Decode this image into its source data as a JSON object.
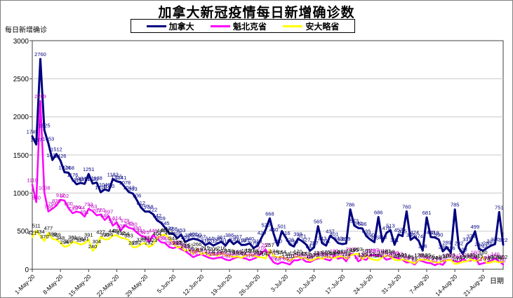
{
  "title": "加拿大新冠疫情每日新增确诊数",
  "legend": {
    "items": [
      {
        "label": "加拿大",
        "color": "#000080"
      },
      {
        "label": "魁北克省",
        "color": "#FF00FF"
      },
      {
        "label": "安大略省",
        "color": "#FFFF00"
      }
    ]
  },
  "chart_data": {
    "type": "line",
    "title": "加拿大新冠疫情每日新增确诊数",
    "xlabel": "日期",
    "ylabel": "每日新增确诊",
    "ylim": [
      0,
      3000
    ],
    "y_ticks": [
      "0",
      "500",
      "1000",
      "1500",
      "2000",
      "2500",
      "3000"
    ],
    "x_tick_labels": [
      "1-May-20",
      "8-May-20",
      "15-May-20",
      "22-May-20",
      "29-May-20",
      "5-Jun-20",
      "12-Jun-20",
      "19-Jun-20",
      "26-Jun-20",
      "3-Jul-20",
      "10-Jul-20",
      "17-Jul-20",
      "24-Jul-20",
      "31-Jul-20",
      "7-Aug-20",
      "14-Aug-20",
      "21-Aug-20"
    ],
    "x_tick_interval_days": 7,
    "grid": true,
    "legend_position": "top",
    "series": [
      {
        "name": "加拿大",
        "color": "#000080",
        "label_color": "#000080",
        "values": [
          1745,
          1637,
          2760,
          1825,
          1653,
          1434,
          1512,
          1426,
          1274,
          1268,
          1176,
          1115,
          1134,
          1121,
          1251,
          1125,
          1138,
          1010,
          1049,
          1030,
          1182,
          1155,
          1141,
          1078,
          1013,
          993,
          906,
          812,
          757,
          758,
          722,
          642,
          609,
          545,
          472,
          468,
          409,
          453,
          359,
          386,
          401,
          390,
          367,
          318,
          344,
          312,
          338,
          361,
          310,
          386,
          330,
          367,
          318,
          321,
          340,
          279,
          310,
          420,
          520,
          668,
          460,
          310,
          501,
          416,
          326,
          299,
          399,
          371,
          327,
          243,
          287,
          565,
          343,
          311,
          437,
          401,
          343,
          330,
          339,
          786,
          573,
          541,
          536,
          435,
          390,
          355,
          686,
          358,
          478,
          513,
          321,
          457,
          435,
          760,
          386,
          424,
          374,
          246,
          681,
          423,
          418,
          390,
          236,
          289,
          216,
          785,
          282,
          198,
          331,
          374,
          499,
          267,
          243,
          280,
          310,
          330,
          751,
          322
        ]
      },
      {
        "name": "魁北克省",
        "color": "#FF00FF",
        "label_color": "#C000C0",
        "values": [
          1110,
          880,
          2209,
          1008,
          758,
          794,
          836,
          912,
          902,
          800,
          735,
          756,
          744,
          691,
          793,
          763,
          707,
          720,
          646,
          697,
          573,
          614,
          508,
          579,
          545,
          530,
          480,
          441,
          425,
          358,
          446,
          404,
          355,
          344,
          292,
          276,
          295,
          262,
          239,
          199,
          158,
          182,
          197,
          171,
          149,
          138,
          149,
          156,
          128,
          117,
          142,
          161,
          149,
          142,
          119,
          138,
          160,
          216,
          257,
          157,
          89,
          68,
          94,
          80,
          62,
          117,
          118,
          141,
          100,
          94,
          123,
          141,
          146,
          130,
          115,
          180,
          137,
          158,
          104,
          203,
          195,
          103,
          135,
          123,
          185,
          187,
          181,
          168,
          124,
          141,
          158,
          142,
          123,
          88,
          94,
          62,
          123,
          104,
          86,
          79,
          53,
          76,
          58,
          123,
          125,
          105,
          94,
          131,
          108,
          115,
          160,
          64,
          78,
          93,
          112,
          140,
          103,
          62
        ]
      },
      {
        "name": "安大略省",
        "color": "#FFFF00",
        "label_color": "#000000",
        "values": [
          421,
          511,
          434,
          370,
          477,
          399,
          389,
          348,
          294,
          308,
          361,
          345,
          324,
          341,
          391,
          240,
          304,
          427,
          390,
          396,
          441,
          446,
          412,
          404,
          383,
          287,
          292,
          326,
          344,
          292,
          323,
          404,
          446,
          455,
          412,
          344,
          287,
          292,
          243,
          251,
          203,
          266,
          197,
          219,
          173,
          206,
          175,
          216,
          184,
          178,
          161,
          169,
          149,
          182,
          190,
          178,
          161,
          157,
          142,
          257,
          174,
          157,
          164,
          138,
          110,
          154,
          170,
          142,
          149,
          111,
          130,
          157,
          135,
          165,
          154,
          148,
          166,
          170,
          138,
          182,
          195,
          203,
          130,
          185,
          137,
          123,
          119,
          157,
          181,
          168,
          124,
          116,
          131,
          116,
          95,
          78,
          126,
          124,
          125,
          105,
          94,
          86,
          108,
          115,
          123,
          70,
          78,
          99,
          105,
          131,
          108,
          115,
          160,
          78,
          93,
          105,
          88,
          102
        ]
      }
    ]
  }
}
